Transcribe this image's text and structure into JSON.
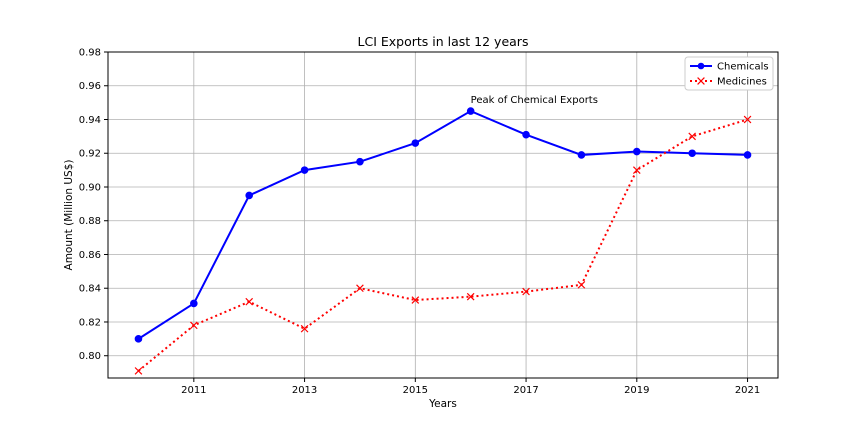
{
  "chart_data": {
    "type": "line",
    "title": "LCI Exports in last 12 years",
    "xlabel": "Years",
    "ylabel": "Amount (Million US$)",
    "x": [
      2010,
      2011,
      2012,
      2013,
      2014,
      2015,
      2016,
      2017,
      2018,
      2019,
      2020,
      2021
    ],
    "xticks": [
      "2011",
      "2013",
      "2015",
      "2017",
      "2019",
      "2021"
    ],
    "yticks": [
      "0.80",
      "0.82",
      "0.84",
      "0.86",
      "0.88",
      "0.90",
      "0.92",
      "0.94",
      "0.96",
      "0.98"
    ],
    "xlim": [
      2009.45,
      2021.55
    ],
    "ylim": [
      0.7868,
      0.98
    ],
    "grid": true,
    "legend_position": "top-right",
    "series": [
      {
        "name": "Chemicals",
        "values": [
          0.81,
          0.831,
          0.895,
          0.91,
          0.915,
          0.926,
          0.945,
          0.931,
          0.919,
          0.921,
          0.92,
          0.919
        ],
        "color": "#0000ff",
        "style": "solid",
        "marker": "circle"
      },
      {
        "name": "Medicines",
        "values": [
          0.791,
          0.818,
          0.832,
          0.816,
          0.84,
          0.833,
          0.835,
          0.838,
          0.842,
          0.91,
          0.93,
          0.94
        ],
        "color": "#ff0000",
        "style": "dotted",
        "marker": "x"
      }
    ],
    "annotations": [
      {
        "text": "Peak of Chemical Exports",
        "x": 2016,
        "y": 0.945
      }
    ]
  }
}
